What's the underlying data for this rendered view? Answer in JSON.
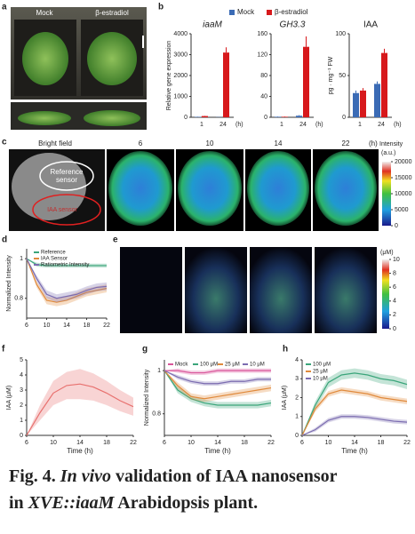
{
  "panel_labels": [
    "a",
    "b",
    "c",
    "d",
    "e",
    "f",
    "g",
    "h"
  ],
  "panel_a": {
    "labels": [
      "Mock",
      "β-estradiol"
    ]
  },
  "panel_c": {
    "bright_field": "Bright field",
    "reference": [
      "Reference",
      "sensor"
    ],
    "iaa_sensor": "IAA sensor",
    "times": [
      "6",
      "10",
      "14",
      "22"
    ],
    "time_unit": "(h)",
    "colorbar_label": [
      "Intensity",
      "(a.u.)"
    ],
    "colorbar_ticks": [
      0,
      5000,
      10000,
      15000,
      20000
    ],
    "colorbar_lim": [
      0,
      20000
    ]
  },
  "panel_e": {
    "colorbar_label": "(μM)",
    "colorbar_ticks": [
      0,
      2,
      4,
      6,
      8,
      10
    ],
    "colorbar_lim": [
      0,
      10
    ]
  },
  "chart_data": [
    {
      "type": "bar",
      "categories": [
        "1",
        "24"
      ],
      "xlabel": "(h)",
      "legend": [
        {
          "name": "Mock",
          "color": "#3b6bb5"
        },
        {
          "name": "β-estradiol",
          "color": "#d7191c"
        }
      ],
      "subplots": [
        {
          "title": "iaaM",
          "ylabel": "Relative gene expression",
          "ylim": [
            0,
            4000
          ],
          "yticks": [
            0,
            1000,
            2000,
            3000,
            4000
          ],
          "series": [
            {
              "values": [
                20,
                10
              ],
              "errors": [
                5,
                5
              ]
            },
            {
              "values": [
                60,
                3100
              ],
              "errors": [
                10,
                250
              ]
            }
          ]
        },
        {
          "title": "GH3.3",
          "ylim": [
            0,
            160
          ],
          "yticks": [
            0,
            40,
            80,
            120,
            160
          ],
          "series": [
            {
              "values": [
                1,
                3
              ],
              "errors": [
                0.5,
                1
              ]
            },
            {
              "values": [
                1,
                135
              ],
              "errors": [
                0.5,
                20
              ]
            }
          ]
        },
        {
          "title": "IAA",
          "ylabel": "pg · mg⁻¹ FW",
          "ylim": [
            0,
            100
          ],
          "yticks": [
            0,
            50,
            100
          ],
          "series": [
            {
              "values": [
                29,
                40
              ],
              "errors": [
                3,
                3
              ]
            },
            {
              "values": [
                32,
                77
              ],
              "errors": [
                3,
                5
              ]
            }
          ]
        }
      ]
    },
    {
      "type": "line",
      "ylabel": "Normalized Intensity",
      "xlim": [
        6,
        22
      ],
      "xticks": [
        6,
        10,
        14,
        18,
        22
      ],
      "ylim": [
        0.7,
        1.05
      ],
      "yticks": [
        0.8,
        1.0
      ],
      "legend": "upper right",
      "x": [
        6,
        8,
        10,
        12,
        14,
        16,
        18,
        20,
        22
      ],
      "series": [
        {
          "name": "Reference",
          "color": "#3aa57a",
          "values": [
            1.0,
            0.97,
            0.965,
            0.965,
            0.965,
            0.965,
            0.965,
            0.965,
            0.965
          ],
          "sd": [
            0,
            0.01,
            0.01,
            0.01,
            0.01,
            0.01,
            0.01,
            0.01,
            0.01
          ]
        },
        {
          "name": "IAA Sensor",
          "color": "#e08a3c",
          "values": [
            1.0,
            0.87,
            0.79,
            0.78,
            0.79,
            0.81,
            0.83,
            0.84,
            0.85
          ],
          "sd": [
            0,
            0.015,
            0.02,
            0.02,
            0.02,
            0.02,
            0.02,
            0.02,
            0.02
          ]
        },
        {
          "name": "Ratiometric Intensity",
          "color": "#7b6cb0",
          "values": [
            1.0,
            0.9,
            0.82,
            0.8,
            0.81,
            0.82,
            0.84,
            0.855,
            0.86
          ],
          "sd": [
            0,
            0.015,
            0.02,
            0.02,
            0.02,
            0.02,
            0.02,
            0.02,
            0.02
          ]
        }
      ]
    },
    {
      "type": "line",
      "ylabel": "IAA (μM)",
      "xlabel": "Time (h)",
      "xlim": [
        6,
        22
      ],
      "xticks": [
        6,
        10,
        14,
        18,
        22
      ],
      "ylim": [
        0,
        5
      ],
      "yticks": [
        0,
        1,
        2,
        3,
        4,
        5
      ],
      "x": [
        6,
        8,
        10,
        12,
        14,
        16,
        18,
        20,
        22
      ],
      "series": [
        {
          "color": "#e8716f",
          "values": [
            0,
            1.5,
            2.8,
            3.3,
            3.4,
            3.2,
            2.8,
            2.3,
            1.9
          ],
          "sd": [
            0,
            0.5,
            0.8,
            0.9,
            1.0,
            0.9,
            0.8,
            0.7,
            0.6
          ]
        }
      ]
    },
    {
      "type": "line",
      "ylabel": "Normalized Intensity",
      "xlabel": "Time (h)",
      "xlim": [
        6,
        22
      ],
      "xticks": [
        6,
        10,
        14,
        18,
        22
      ],
      "ylim": [
        0.7,
        1.05
      ],
      "yticks": [
        0.8,
        1.0
      ],
      "legend": "top",
      "x": [
        6,
        8,
        10,
        12,
        14,
        16,
        18,
        20,
        22
      ],
      "series": [
        {
          "name": "Mock",
          "color": "#d9559a",
          "values": [
            1.0,
            1.0,
            0.99,
            0.99,
            1.0,
            1.0,
            1.0,
            1.0,
            1.0
          ],
          "sd": [
            0,
            0.01,
            0.01,
            0.01,
            0.01,
            0.01,
            0.01,
            0.01,
            0.01
          ]
        },
        {
          "name": "100 μM",
          "color": "#3aa57a",
          "values": [
            1.0,
            0.91,
            0.87,
            0.85,
            0.84,
            0.84,
            0.84,
            0.84,
            0.85
          ],
          "sd": [
            0,
            0.015,
            0.015,
            0.015,
            0.015,
            0.015,
            0.015,
            0.015,
            0.015
          ]
        },
        {
          "name": "25 μM",
          "color": "#e08a3c",
          "values": [
            1.0,
            0.93,
            0.88,
            0.87,
            0.88,
            0.89,
            0.9,
            0.91,
            0.92
          ],
          "sd": [
            0,
            0.015,
            0.015,
            0.015,
            0.015,
            0.015,
            0.015,
            0.015,
            0.015
          ]
        },
        {
          "name": "10 μM",
          "color": "#7b6cb0",
          "values": [
            1.0,
            0.97,
            0.95,
            0.94,
            0.94,
            0.95,
            0.95,
            0.96,
            0.96
          ],
          "sd": [
            0,
            0.01,
            0.01,
            0.01,
            0.01,
            0.01,
            0.01,
            0.01,
            0.01
          ]
        }
      ]
    },
    {
      "type": "line",
      "ylabel": "IAA (μM)",
      "xlabel": "Time (h)",
      "xlim": [
        6,
        22
      ],
      "xticks": [
        6,
        10,
        14,
        18,
        22
      ],
      "ylim": [
        0,
        4
      ],
      "yticks": [
        0,
        1,
        2,
        3,
        4
      ],
      "legend": "upper left",
      "x": [
        6,
        8,
        10,
        12,
        14,
        16,
        18,
        20,
        22
      ],
      "series": [
        {
          "name": "100 μM",
          "color": "#3aa57a",
          "values": [
            0,
            1.6,
            2.8,
            3.2,
            3.3,
            3.2,
            3.0,
            2.9,
            2.7
          ],
          "sd": [
            0,
            0.2,
            0.25,
            0.25,
            0.25,
            0.25,
            0.25,
            0.25,
            0.25
          ]
        },
        {
          "name": "25 μM",
          "color": "#e08a3c",
          "values": [
            0,
            1.4,
            2.2,
            2.4,
            2.3,
            2.2,
            2.0,
            1.9,
            1.8
          ],
          "sd": [
            0,
            0.15,
            0.15,
            0.15,
            0.15,
            0.15,
            0.15,
            0.15,
            0.15
          ]
        },
        {
          "name": "10 μM",
          "color": "#7b6cb0",
          "values": [
            0,
            0.3,
            0.8,
            1.0,
            1.0,
            0.95,
            0.85,
            0.75,
            0.7
          ],
          "sd": [
            0,
            0.1,
            0.12,
            0.12,
            0.12,
            0.12,
            0.12,
            0.12,
            0.12
          ]
        }
      ]
    }
  ],
  "caption": [
    [
      {
        "text": "Fig. 4. "
      },
      {
        "text": "In vivo",
        "italic": true
      },
      {
        "text": " validation of IAA nanosensor"
      }
    ],
    [
      {
        "text": "in "
      },
      {
        "text": "XVE::iaaM",
        "italic": true
      },
      {
        "text": " Arabidopsis plant."
      }
    ]
  ]
}
